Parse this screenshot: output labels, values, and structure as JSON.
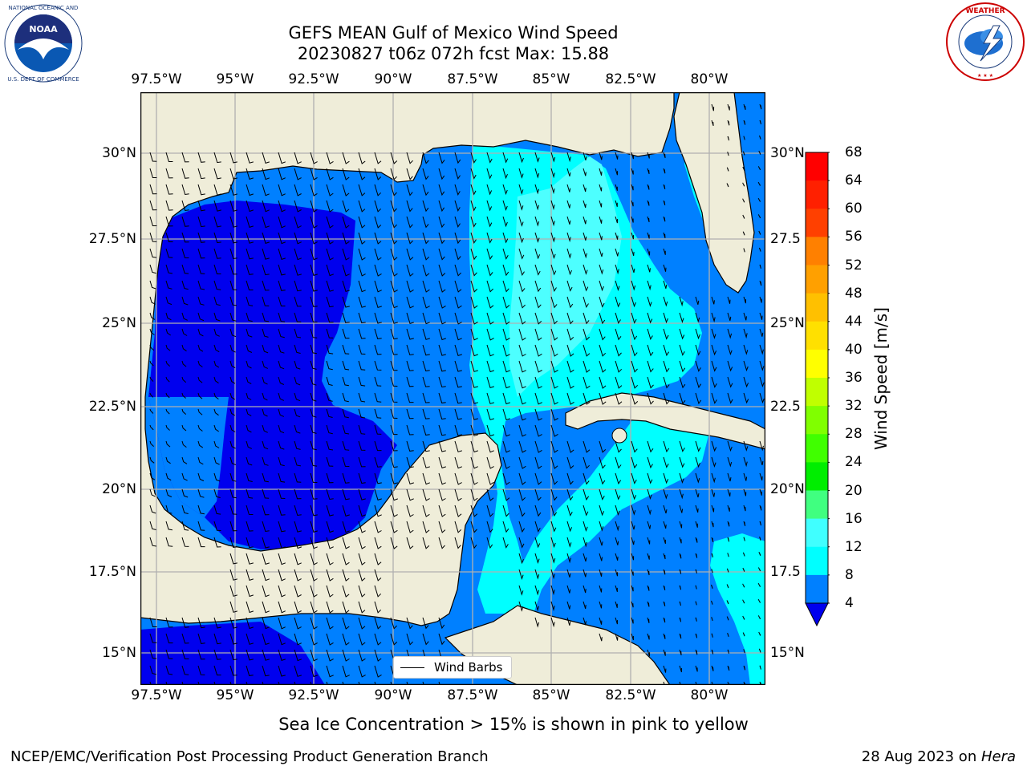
{
  "title": {
    "line1": "GEFS MEAN Gulf of Mexico Wind Speed",
    "line2": "20230827 t06z 072h fcst   Max: 15.88"
  },
  "logos": {
    "left": "NOAA",
    "right": "NATIONAL WEATHER SERVICE"
  },
  "map": {
    "lon_ticks": [
      "97.5°W",
      "95°W",
      "92.5°W",
      "90°W",
      "87.5°W",
      "85°W",
      "82.5°W",
      "80°W"
    ],
    "lat_ticks_left": [
      "30°N",
      "27.5°N",
      "25°N",
      "22.5°N",
      "20°N",
      "17.5°N",
      "15°N"
    ],
    "lat_ticks_right": [
      "30°N",
      "27.5",
      "25°N",
      "22.5",
      "20°N",
      "17.5",
      "15°N"
    ],
    "legend_label": "Wind Barbs",
    "colors": {
      "land": "#efedd9",
      "level_0_4": "#0000ee",
      "level_4_8": "#0080ff",
      "level_8_12": "#00ffff",
      "level_12_16": "#4dffff"
    }
  },
  "colorbar": {
    "label": "Wind Speed [m/s]",
    "ticks": [
      "68",
      "64",
      "60",
      "56",
      "52",
      "48",
      "44",
      "40",
      "36",
      "32",
      "28",
      "24",
      "20",
      "16",
      "12",
      "8",
      "4"
    ],
    "colors": [
      "#ff0000",
      "#ff2000",
      "#ff4000",
      "#ff6000",
      "#ff8000",
      "#ffa000",
      "#ffc000",
      "#ffe000",
      "#ffff00",
      "#e0ff00",
      "#c0ff00",
      "#80ff00",
      "#40ff00",
      "#00ee00",
      "#40ff80",
      "#a0ffff",
      "#40ffff",
      "#00ffff",
      "#0080ff"
    ],
    "under_color": "#0000ee"
  },
  "footer": {
    "sea_ice_note": "Sea Ice Concentration > 15% is shown in pink to yellow",
    "credit": "NCEP/EMC/Verification Post Processing Product Generation Branch",
    "date_prefix": "28 Aug 2023 on ",
    "date_machine": "Hera"
  }
}
